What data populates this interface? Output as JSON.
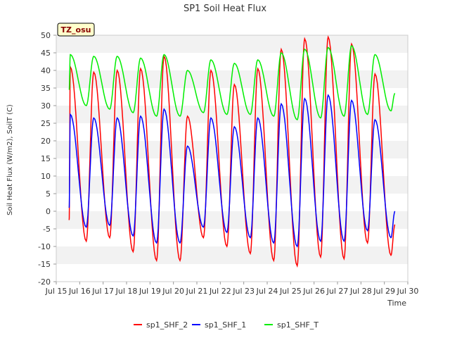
{
  "chart_data": {
    "type": "line",
    "title": "SP1 Soil Heat Flux",
    "xlabel": "Time",
    "ylabel": "Soil Heat Flux (W/m2), SoilT (C)",
    "badge": "TZ_osu",
    "xlim": [
      15,
      30
    ],
    "ylim": [
      -20,
      50
    ],
    "x_ticks": [
      15,
      16,
      17,
      18,
      19,
      20,
      21,
      22,
      23,
      24,
      25,
      26,
      27,
      28,
      29,
      30
    ],
    "x_tick_labels": [
      "Jul 15",
      "Jul 16",
      "Jul 17",
      "Jul 18",
      "Jul 19",
      "Jul 20",
      "Jul 21",
      "Jul 22",
      "Jul 23",
      "Jul 24",
      "Jul 25",
      "Jul 26",
      "Jul 27",
      "Jul 28",
      "Jul 29",
      "Jul 30"
    ],
    "y_ticks": [
      -20,
      -15,
      -10,
      -5,
      0,
      5,
      10,
      15,
      20,
      25,
      30,
      35,
      40,
      45,
      50
    ],
    "grid": "horizontal bands",
    "legend_position": "bottom",
    "x_range": [
      15.55,
      29.45
    ],
    "peak_phase": 0.6,
    "series": [
      {
        "name": "sp1_SHF_2",
        "color": "#ff0000",
        "start": -2.5,
        "end": -3.8,
        "peaks": [
          41,
          39.5,
          40,
          40.5,
          44,
          27,
          40,
          36,
          40.5,
          46,
          49,
          49.5,
          47.5,
          39
        ],
        "troughs": [
          -8.5,
          -7.5,
          -11.5,
          -14,
          -14,
          -7.5,
          -10,
          -12,
          -14,
          -15.5,
          -13,
          -13.5,
          -9,
          -12.5
        ]
      },
      {
        "name": "sp1_SHF_1",
        "color": "#0000ff",
        "start": 1,
        "end": 0,
        "peaks": [
          27.5,
          26.5,
          26.5,
          27,
          29,
          18.5,
          26.5,
          24,
          26.5,
          30.5,
          32,
          33,
          31.5,
          26
        ],
        "troughs": [
          -4.5,
          -4,
          -7,
          -9,
          -9,
          -4.5,
          -6,
          -7.5,
          -9,
          -10,
          -8.5,
          -8.5,
          -5.5,
          -7.5
        ]
      },
      {
        "name": "sp1_SHF_T",
        "color": "#00ee00",
        "start": 34.5,
        "end": 33.5,
        "peaks": [
          44.5,
          44,
          44,
          43.5,
          44.5,
          40,
          43,
          42,
          43,
          45,
          46,
          46.5,
          47,
          44.5
        ],
        "troughs": [
          30,
          29,
          28,
          27,
          27,
          28,
          27.5,
          27.5,
          27,
          26,
          26.5,
          27,
          27.5,
          28.5
        ]
      }
    ]
  }
}
